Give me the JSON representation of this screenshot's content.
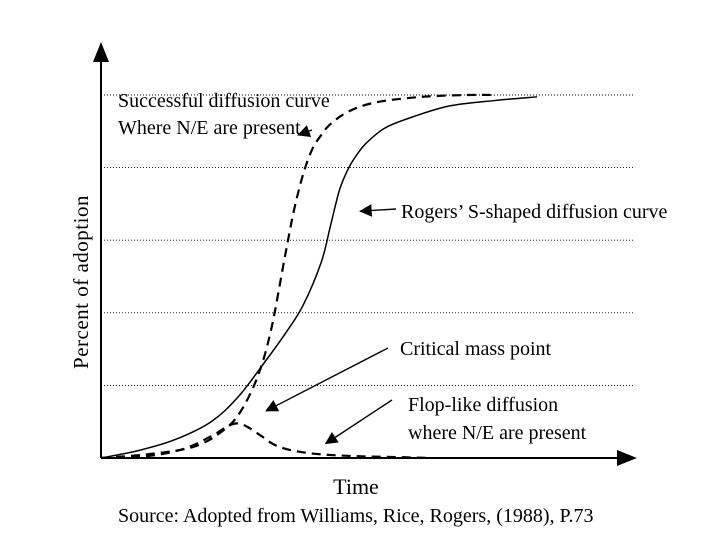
{
  "chart_data": {
    "type": "line",
    "title": "",
    "xlabel": "Time",
    "ylabel": "Percent of adoption",
    "xlim": [
      0,
      100
    ],
    "ylim": [
      0,
      100
    ],
    "grid": true,
    "gridlines_y": [
      20,
      40,
      60,
      80,
      100
    ],
    "series": [
      {
        "name": "Rogers' S-shaped diffusion curve",
        "style": "solid",
        "x": [
          0,
          8,
          16,
          24,
          30,
          36,
          40,
          44,
          48,
          50,
          52,
          54,
          56,
          58,
          62,
          68,
          76,
          86,
          95
        ],
        "y": [
          0,
          2,
          5,
          10,
          17,
          27,
          34,
          42,
          54,
          64,
          74,
          80,
          84,
          87,
          91,
          94,
          97,
          98.5,
          99.5
        ]
      },
      {
        "name": "Successful diffusion curve where N/E are present",
        "style": "dashed",
        "x": [
          0,
          10,
          20,
          26,
          30,
          34,
          37,
          40,
          42,
          44,
          46,
          48,
          50,
          54,
          60,
          70,
          80,
          86
        ],
        "y": [
          0,
          1,
          3,
          7,
          12,
          22,
          35,
          55,
          68,
          78,
          85,
          89,
          92,
          95.5,
          98,
          99.5,
          100,
          100
        ]
      },
      {
        "name": "Flop-like diffusion where N/E are present",
        "style": "dashed",
        "x": [
          0,
          10,
          18,
          24,
          28,
          30,
          32,
          35,
          38,
          42,
          48,
          56,
          66,
          72
        ],
        "y": [
          0,
          0.5,
          2.5,
          6,
          9,
          9.5,
          8.5,
          6,
          3.5,
          2,
          1,
          0.5,
          0.2,
          0
        ]
      }
    ],
    "annotations": [
      {
        "id": "successful",
        "lines": [
          "Successful diffusion curve",
          "Where N/E are present"
        ],
        "arrow_to": {
          "x": 43,
          "y": 89
        }
      },
      {
        "id": "rogers",
        "lines": [
          "Rogers’ S-shaped diffusion curve"
        ],
        "arrow_to": {
          "x": 56.5,
          "y": 68
        }
      },
      {
        "id": "critical",
        "lines": [
          "Critical mass point"
        ],
        "arrow_to": {
          "x": 36,
          "y": 13
        }
      },
      {
        "id": "flop",
        "lines": [
          "Flop-like diffusion",
          "where N/E are present"
        ],
        "arrow_to": {
          "x": 49,
          "y": 4
        }
      }
    ]
  },
  "source_note": "Source: Adopted from Williams, Rice, Rogers, (1988), P.73"
}
